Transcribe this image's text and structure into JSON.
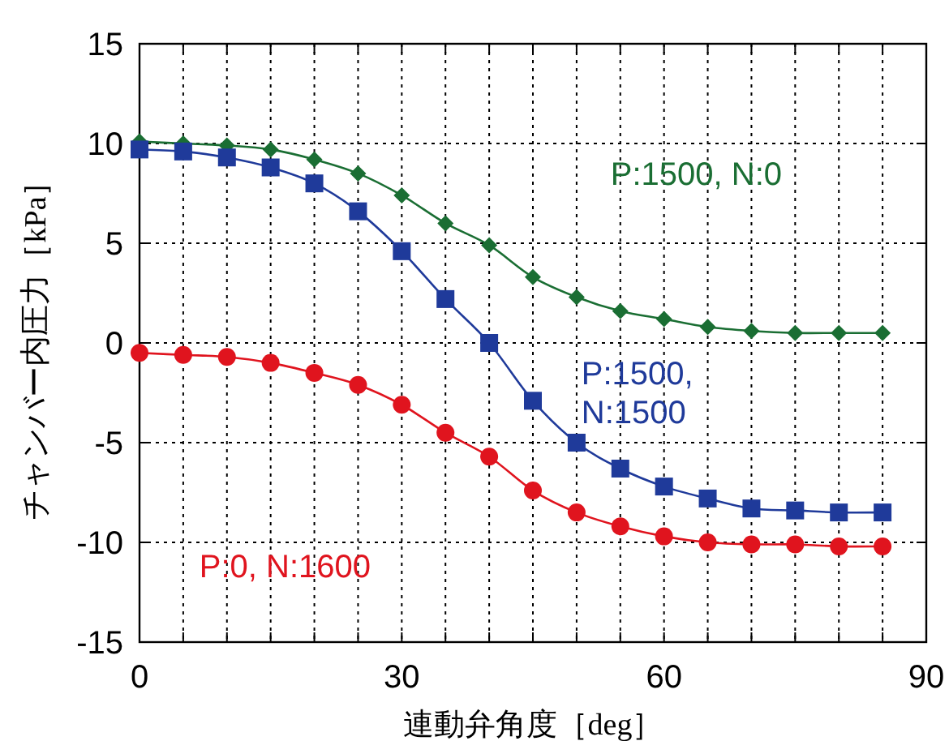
{
  "chart_data": {
    "type": "line",
    "xlabel": "連動弁角度［deg］",
    "ylabel": "チャンバー内圧力［kPa］",
    "x": [
      0,
      5,
      10,
      15,
      20,
      25,
      30,
      35,
      40,
      45,
      50,
      55,
      60,
      65,
      70,
      75,
      80,
      85
    ],
    "xlim": [
      0,
      90
    ],
    "ylim": [
      -15,
      15
    ],
    "xticks": [
      0,
      {
        "value": 5,
        "label": null
      },
      {
        "value": 10,
        "label": null
      },
      {
        "value": 15,
        "label": null
      },
      {
        "value": 20,
        "label": null
      },
      {
        "value": 25,
        "label": null
      },
      30,
      {
        "value": 35,
        "label": null
      },
      {
        "value": 40,
        "label": null
      },
      {
        "value": 45,
        "label": null
      },
      {
        "value": 50,
        "label": null
      },
      {
        "value": 55,
        "label": null
      },
      60,
      {
        "value": 65,
        "label": null
      },
      {
        "value": 70,
        "label": null
      },
      {
        "value": 75,
        "label": null
      },
      {
        "value": 80,
        "label": null
      },
      {
        "value": 85,
        "label": null
      },
      90
    ],
    "yticks": [
      -15,
      -10,
      -5,
      0,
      5,
      10,
      15
    ],
    "grid": true,
    "line_style": "solid",
    "series": [
      {
        "name": "P:1500, N:0",
        "color": "#1a6e33",
        "marker": "diamond",
        "values": [
          10.1,
          10.0,
          9.9,
          9.7,
          9.2,
          8.5,
          7.4,
          6.0,
          4.9,
          3.3,
          2.3,
          1.6,
          1.2,
          0.8,
          0.6,
          0.5,
          0.5,
          0.5
        ]
      },
      {
        "name": "P:1500, N:1500",
        "color": "#1f3a9a",
        "marker": "square",
        "values": [
          9.7,
          9.6,
          9.3,
          8.8,
          8.0,
          6.6,
          4.6,
          2.2,
          0,
          -2.9,
          -5.0,
          -6.3,
          -7.2,
          -7.8,
          -8.3,
          -8.4,
          -8.5,
          -8.5
        ]
      },
      {
        "name": "P:0, N:1600",
        "color": "#e0141e",
        "marker": "circle",
        "values": [
          -0.5,
          -0.6,
          -0.7,
          -1.0,
          -1.5,
          -2.1,
          -3.1,
          -4.5,
          -5.7,
          -7.4,
          -8.5,
          -9.2,
          -9.7,
          -10.0,
          -10.1,
          -10.1,
          -10.2,
          -10.2
        ]
      }
    ]
  }
}
